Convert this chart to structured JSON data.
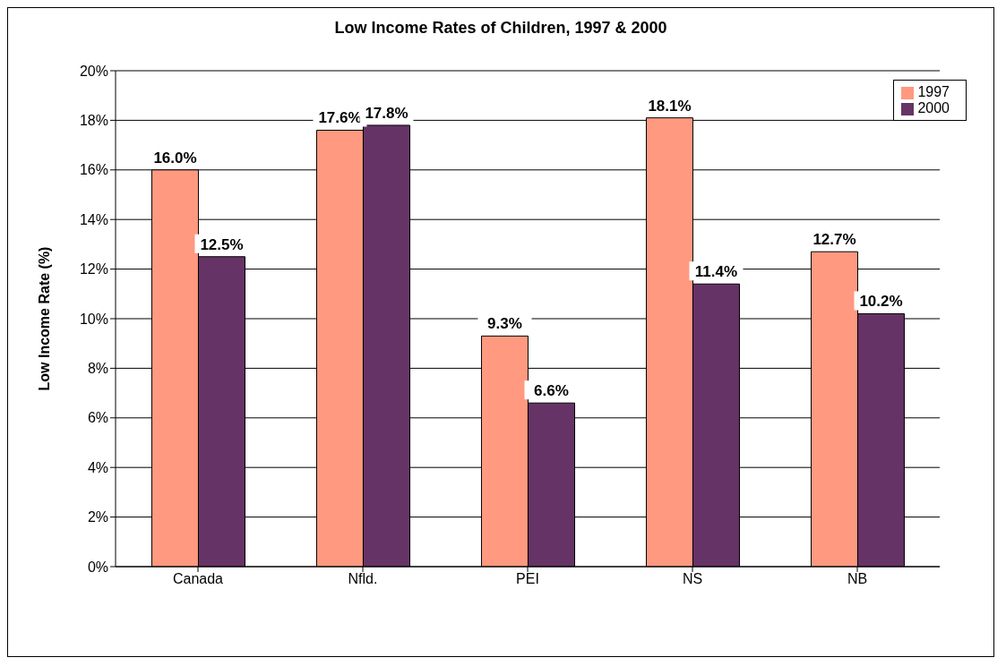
{
  "chart_data": {
    "type": "bar",
    "title": "Low Income Rates of Children, 1997 & 2000",
    "ylabel": "Low Income Rate (%)",
    "categories": [
      "Canada",
      "Nfld.",
      "PEI",
      "NS",
      "NB"
    ],
    "series": [
      {
        "name": "1997",
        "color": "#ff9980",
        "values": [
          16.0,
          17.6,
          9.3,
          18.1,
          12.7
        ],
        "value_labels": [
          "16.0%",
          "17.6%",
          "9.3%",
          "18.1%",
          "12.7%"
        ]
      },
      {
        "name": "2000",
        "color": "#663366",
        "values": [
          12.5,
          17.8,
          6.6,
          11.4,
          10.2
        ],
        "value_labels": [
          "12.5%",
          "17.8%",
          "6.6%",
          "11.4%",
          "10.2%"
        ]
      }
    ],
    "ylim": [
      0,
      20
    ],
    "yticks": [
      {
        "value": 0,
        "label": "0%"
      },
      {
        "value": 2,
        "label": "2%"
      },
      {
        "value": 4,
        "label": "4%"
      },
      {
        "value": 6,
        "label": "6%"
      },
      {
        "value": 8,
        "label": "8%"
      },
      {
        "value": 10,
        "label": "10%"
      },
      {
        "value": 12,
        "label": "12%"
      },
      {
        "value": 14,
        "label": "14%"
      },
      {
        "value": 16,
        "label": "16%"
      },
      {
        "value": 18,
        "label": "18%"
      },
      {
        "value": 20,
        "label": "20%"
      }
    ],
    "grid": "y",
    "legend": "top right"
  }
}
